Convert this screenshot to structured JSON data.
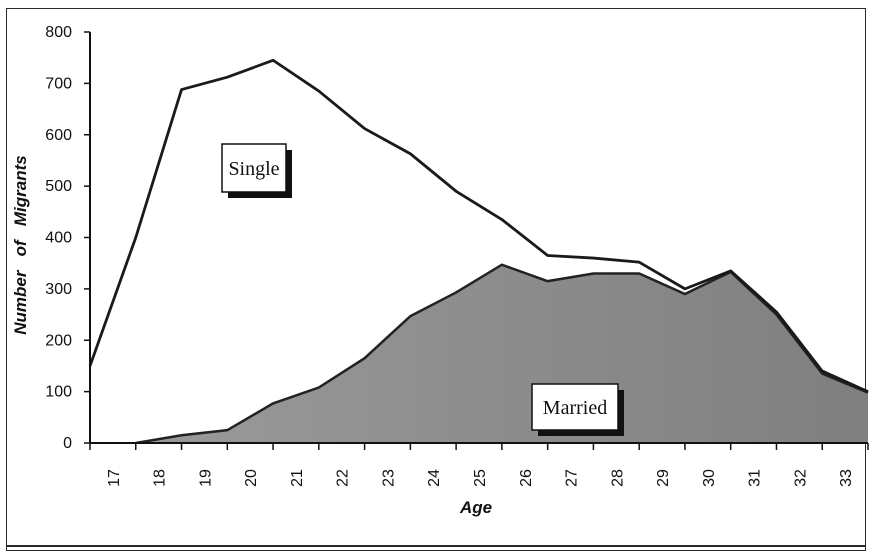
{
  "chart_data": {
    "type": "area",
    "title": "",
    "xlabel": "Age",
    "ylabel": "Number   of   Migrants",
    "ylim": [
      0,
      800
    ],
    "yticks": [
      0,
      100,
      200,
      300,
      400,
      500,
      600,
      700,
      800
    ],
    "categories": [
      "17",
      "18",
      "19",
      "20",
      "21",
      "22",
      "23",
      "24",
      "25",
      "26",
      "27",
      "28",
      "29",
      "30",
      "31",
      "32",
      "33"
    ],
    "series": [
      {
        "name": "Single",
        "style": "line",
        "color": "#1a1a1a",
        "points": [
          [
            16.5,
            150
          ],
          [
            17.5,
            400
          ],
          [
            18.5,
            688
          ],
          [
            19.5,
            712
          ],
          [
            20.5,
            745
          ],
          [
            21.5,
            685
          ],
          [
            22.5,
            612
          ],
          [
            23.5,
            563
          ],
          [
            24.5,
            490
          ],
          [
            25.5,
            435
          ],
          [
            26.5,
            365
          ],
          [
            27.5,
            360
          ],
          [
            28.5,
            352
          ],
          [
            29.5,
            300
          ],
          [
            30.5,
            335
          ],
          [
            31.5,
            255
          ],
          [
            32.5,
            140
          ],
          [
            33.5,
            100
          ]
        ]
      },
      {
        "name": "Married",
        "style": "filled-area",
        "color": "#8c8c8c",
        "points": [
          [
            17.5,
            0
          ],
          [
            18.5,
            15
          ],
          [
            19.5,
            25
          ],
          [
            20.5,
            77
          ],
          [
            21.5,
            108
          ],
          [
            22.5,
            165
          ],
          [
            23.5,
            247
          ],
          [
            24.5,
            293
          ],
          [
            25.5,
            347
          ],
          [
            26.5,
            315
          ],
          [
            27.5,
            330
          ],
          [
            28.5,
            330
          ],
          [
            29.5,
            290
          ],
          [
            30.5,
            333
          ],
          [
            31.5,
            250
          ],
          [
            32.5,
            135
          ],
          [
            33.5,
            98
          ]
        ]
      }
    ],
    "annotations": [
      {
        "text": "Single",
        "series": "Single"
      },
      {
        "text": "Married",
        "series": "Married"
      }
    ],
    "grid": false,
    "legend": "inline callout boxes"
  }
}
